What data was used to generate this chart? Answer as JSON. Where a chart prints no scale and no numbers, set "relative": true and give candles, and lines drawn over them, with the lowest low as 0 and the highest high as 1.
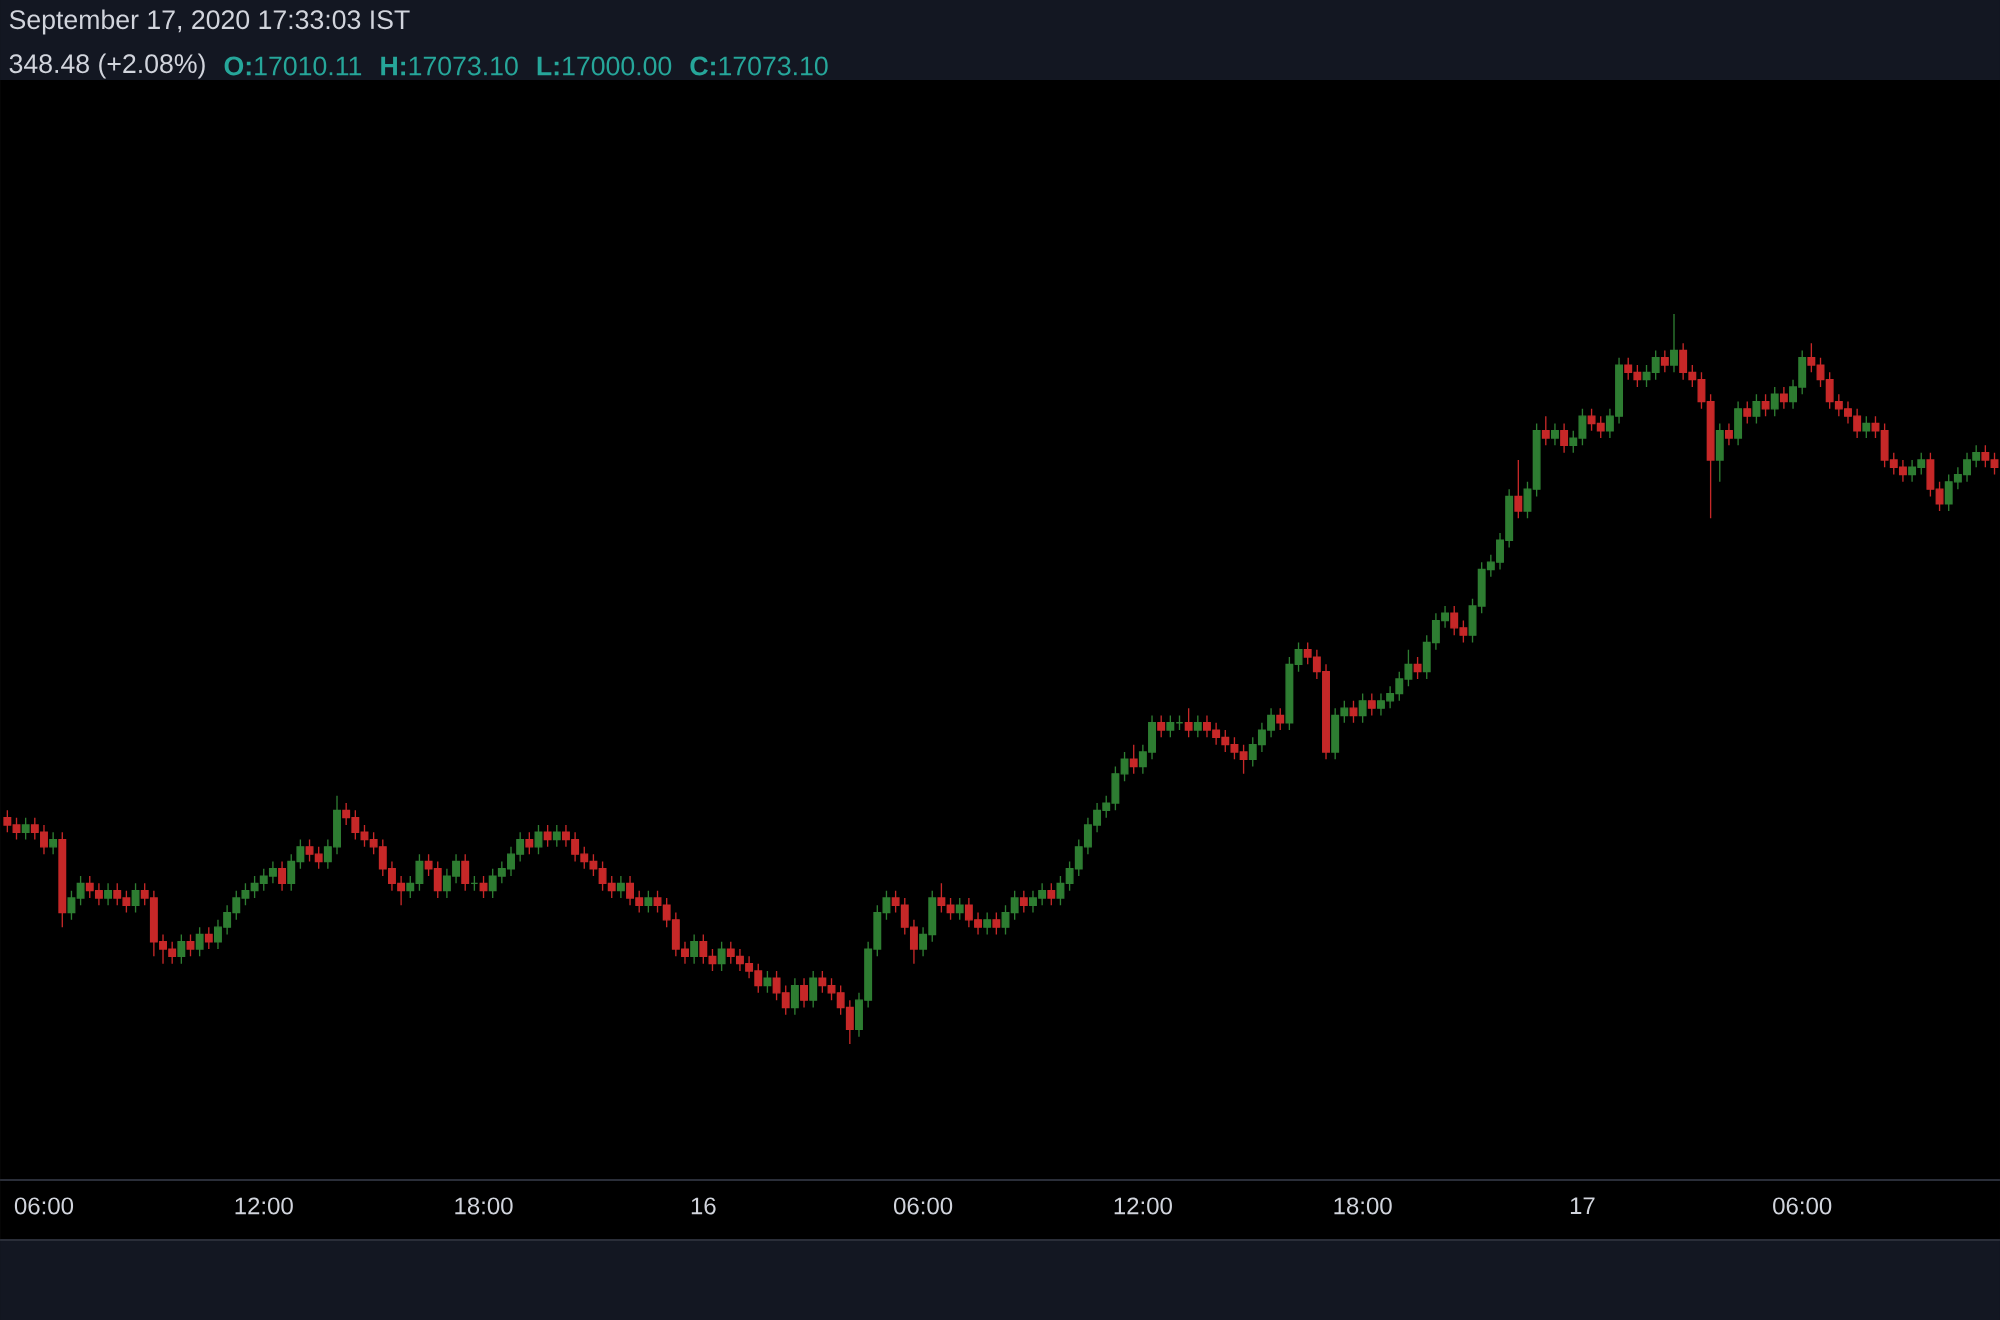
{
  "chart_data": {
    "type": "candlestick",
    "title": "September 17, 2020 17:33:03 IST",
    "annotations": [
      "348.48 (+2.08%)",
      "**O:**17010.11",
      "**H:**17073.10",
      "**L:**17000.00",
      "**C:**17073.10"
    ],
    "relative": true,
    "xlim": [
      "2020-09-15T04:48",
      "2020-09-17T11:24"
    ],
    "xticks": [
      {
        "value": "2020-09-15T06:00",
        "label": "06:00"
      },
      {
        "value": "2020-09-15T12:00",
        "label": "12:00"
      },
      {
        "value": "2020-09-15T18:00",
        "label": "18:00"
      },
      {
        "value": "2020-09-16",
        "label": "16"
      },
      {
        "value": "2020-09-16T06:00",
        "label": "06:00"
      },
      {
        "value": "2020-09-16T12:00",
        "label": "12:00"
      },
      {
        "value": "2020-09-16T18:00",
        "label": "18:00"
      },
      {
        "value": "2020-09-17",
        "label": "17"
      },
      {
        "value": "2020-09-17T06:00",
        "label": "06:00"
      }
    ],
    "x": [
      "2020-09-15T05:00",
      "2020-09-15T05:15",
      "2020-09-15T05:30",
      "2020-09-15T05:45",
      "2020-09-15T06:00",
      "2020-09-15T06:15",
      "2020-09-15T06:30",
      "2020-09-15T06:45",
      "2020-09-15T07:00",
      "2020-09-15T07:15",
      "2020-09-15T07:30",
      "2020-09-15T07:45",
      "2020-09-15T08:00",
      "2020-09-15T08:15",
      "2020-09-15T08:30",
      "2020-09-15T08:45",
      "2020-09-15T09:00",
      "2020-09-15T09:15",
      "2020-09-15T09:30",
      "2020-09-15T09:45",
      "2020-09-15T10:00",
      "2020-09-15T10:15",
      "2020-09-15T10:30",
      "2020-09-15T10:45",
      "2020-09-15T11:00",
      "2020-09-15T11:15",
      "2020-09-15T11:30",
      "2020-09-15T11:45",
      "2020-09-15T12:00",
      "2020-09-15T12:15",
      "2020-09-15T12:30",
      "2020-09-15T12:45",
      "2020-09-15T13:00",
      "2020-09-15T13:15",
      "2020-09-15T13:30",
      "2020-09-15T13:45",
      "2020-09-15T14:00",
      "2020-09-15T14:15",
      "2020-09-15T14:30",
      "2020-09-15T14:45",
      "2020-09-15T15:00",
      "2020-09-15T15:15",
      "2020-09-15T15:30",
      "2020-09-15T15:45",
      "2020-09-15T16:00",
      "2020-09-15T16:15",
      "2020-09-15T16:30",
      "2020-09-15T16:45",
      "2020-09-15T17:00",
      "2020-09-15T17:15",
      "2020-09-15T17:30",
      "2020-09-15T17:45",
      "2020-09-15T18:00",
      "2020-09-15T18:15",
      "2020-09-15T18:30",
      "2020-09-15T18:45",
      "2020-09-15T19:00",
      "2020-09-15T19:15",
      "2020-09-15T19:30",
      "2020-09-15T19:45",
      "2020-09-15T20:00",
      "2020-09-15T20:15",
      "2020-09-15T20:30",
      "2020-09-15T20:45",
      "2020-09-15T21:00",
      "2020-09-15T21:15",
      "2020-09-15T21:30",
      "2020-09-15T21:45",
      "2020-09-15T22:00",
      "2020-09-15T22:15",
      "2020-09-15T22:30",
      "2020-09-15T22:45",
      "2020-09-15T23:00",
      "2020-09-15T23:15",
      "2020-09-15T23:30",
      "2020-09-15T23:45",
      "2020-09-16T00:00",
      "2020-09-16T00:15",
      "2020-09-16T00:30",
      "2020-09-16T00:45",
      "2020-09-16T01:00",
      "2020-09-16T01:15",
      "2020-09-16T01:30",
      "2020-09-16T01:45",
      "2020-09-16T02:00",
      "2020-09-16T02:15",
      "2020-09-16T02:30",
      "2020-09-16T02:45",
      "2020-09-16T03:00",
      "2020-09-16T03:15",
      "2020-09-16T03:30",
      "2020-09-16T03:45",
      "2020-09-16T04:00",
      "2020-09-16T04:15",
      "2020-09-16T04:30",
      "2020-09-16T04:45",
      "2020-09-16T05:00",
      "2020-09-16T05:15",
      "2020-09-16T05:30",
      "2020-09-16T05:45",
      "2020-09-16T06:00",
      "2020-09-16T06:15",
      "2020-09-16T06:30",
      "2020-09-16T06:45",
      "2020-09-16T07:00",
      "2020-09-16T07:15",
      "2020-09-16T07:30",
      "2020-09-16T07:45",
      "2020-09-16T08:00",
      "2020-09-16T08:15",
      "2020-09-16T08:30",
      "2020-09-16T08:45",
      "2020-09-16T09:00",
      "2020-09-16T09:15",
      "2020-09-16T09:30",
      "2020-09-16T09:45",
      "2020-09-16T10:00",
      "2020-09-16T10:15",
      "2020-09-16T10:30",
      "2020-09-16T10:45",
      "2020-09-16T11:00",
      "2020-09-16T11:15",
      "2020-09-16T11:30",
      "2020-09-16T11:45",
      "2020-09-16T12:00",
      "2020-09-16T12:15",
      "2020-09-16T12:30",
      "2020-09-16T12:45",
      "2020-09-16T13:00",
      "2020-09-16T13:15",
      "2020-09-16T13:30",
      "2020-09-16T13:45",
      "2020-09-16T14:00",
      "2020-09-16T14:15",
      "2020-09-16T14:30",
      "2020-09-16T14:45",
      "2020-09-16T15:00",
      "2020-09-16T15:15",
      "2020-09-16T15:30",
      "2020-09-16T15:45",
      "2020-09-16T16:00",
      "2020-09-16T16:15",
      "2020-09-16T16:30",
      "2020-09-16T16:45",
      "2020-09-16T17:00",
      "2020-09-16T17:15",
      "2020-09-16T17:30",
      "2020-09-16T17:45",
      "2020-09-16T18:00",
      "2020-09-16T18:15",
      "2020-09-16T18:30",
      "2020-09-16T18:45",
      "2020-09-16T19:00",
      "2020-09-16T19:15",
      "2020-09-16T19:30",
      "2020-09-16T19:45",
      "2020-09-16T20:00",
      "2020-09-16T20:15",
      "2020-09-16T20:30",
      "2020-09-16T20:45",
      "2020-09-16T21:00",
      "2020-09-16T21:15",
      "2020-09-16T21:30",
      "2020-09-16T21:45",
      "2020-09-16T22:00",
      "2020-09-16T22:15",
      "2020-09-16T22:30",
      "2020-09-16T22:45",
      "2020-09-16T23:00",
      "2020-09-16T23:15",
      "2020-09-16T23:30",
      "2020-09-16T23:45",
      "2020-09-17T00:00",
      "2020-09-17T00:15",
      "2020-09-17T00:30",
      "2020-09-17T00:45",
      "2020-09-17T01:00",
      "2020-09-17T01:15",
      "2020-09-17T01:30",
      "2020-09-17T01:45",
      "2020-09-17T02:00",
      "2020-09-17T02:15",
      "2020-09-17T02:30",
      "2020-09-17T02:45",
      "2020-09-17T03:00",
      "2020-09-17T03:15",
      "2020-09-17T03:30",
      "2020-09-17T03:45",
      "2020-09-17T04:00",
      "2020-09-17T04:15",
      "2020-09-17T04:30",
      "2020-09-17T04:45",
      "2020-09-17T05:00",
      "2020-09-17T05:15",
      "2020-09-17T05:30",
      "2020-09-17T05:45",
      "2020-09-17T06:00",
      "2020-09-17T06:15",
      "2020-09-17T06:30",
      "2020-09-17T06:45",
      "2020-09-17T07:00",
      "2020-09-17T07:15",
      "2020-09-17T07:30",
      "2020-09-17T07:45",
      "2020-09-17T08:00",
      "2020-09-17T08:15",
      "2020-09-17T08:30",
      "2020-09-17T08:45",
      "2020-09-17T09:00",
      "2020-09-17T09:15",
      "2020-09-17T09:30",
      "2020-09-17T09:45",
      "2020-09-17T10:00",
      "2020-09-17T10:15",
      "2020-09-17T10:30",
      "2020-09-17T10:45",
      "2020-09-17T11:00",
      "2020-09-17T11:15"
    ],
    "ohlc": [
      [
        0.31,
        0.32,
        0.29,
        0.3
      ],
      [
        0.3,
        0.31,
        0.28,
        0.29
      ],
      [
        0.29,
        0.31,
        0.28,
        0.3
      ],
      [
        0.3,
        0.31,
        0.28,
        0.29
      ],
      [
        0.29,
        0.3,
        0.26,
        0.27
      ],
      [
        0.27,
        0.29,
        0.26,
        0.28
      ],
      [
        0.28,
        0.29,
        0.16,
        0.18
      ],
      [
        0.18,
        0.21,
        0.17,
        0.2
      ],
      [
        0.2,
        0.23,
        0.19,
        0.22
      ],
      [
        0.22,
        0.23,
        0.2,
        0.21
      ],
      [
        0.21,
        0.22,
        0.19,
        0.2
      ],
      [
        0.2,
        0.22,
        0.19,
        0.21
      ],
      [
        0.21,
        0.22,
        0.19,
        0.2
      ],
      [
        0.2,
        0.21,
        0.18,
        0.19
      ],
      [
        0.19,
        0.22,
        0.18,
        0.21
      ],
      [
        0.21,
        0.22,
        0.19,
        0.2
      ],
      [
        0.2,
        0.21,
        0.12,
        0.14
      ],
      [
        0.14,
        0.15,
        0.11,
        0.13
      ],
      [
        0.13,
        0.14,
        0.11,
        0.12
      ],
      [
        0.12,
        0.15,
        0.11,
        0.14
      ],
      [
        0.14,
        0.15,
        0.12,
        0.13
      ],
      [
        0.13,
        0.16,
        0.12,
        0.15
      ],
      [
        0.15,
        0.16,
        0.13,
        0.14
      ],
      [
        0.14,
        0.17,
        0.13,
        0.16
      ],
      [
        0.16,
        0.19,
        0.15,
        0.18
      ],
      [
        0.18,
        0.21,
        0.17,
        0.2
      ],
      [
        0.2,
        0.22,
        0.19,
        0.21
      ],
      [
        0.21,
        0.23,
        0.2,
        0.22
      ],
      [
        0.22,
        0.24,
        0.21,
        0.23
      ],
      [
        0.23,
        0.25,
        0.22,
        0.24
      ],
      [
        0.24,
        0.25,
        0.21,
        0.22
      ],
      [
        0.22,
        0.26,
        0.21,
        0.25
      ],
      [
        0.25,
        0.28,
        0.24,
        0.27
      ],
      [
        0.27,
        0.28,
        0.25,
        0.26
      ],
      [
        0.26,
        0.27,
        0.24,
        0.25
      ],
      [
        0.25,
        0.28,
        0.24,
        0.27
      ],
      [
        0.27,
        0.34,
        0.26,
        0.32
      ],
      [
        0.32,
        0.33,
        0.3,
        0.31
      ],
      [
        0.31,
        0.32,
        0.28,
        0.29
      ],
      [
        0.29,
        0.3,
        0.27,
        0.28
      ],
      [
        0.28,
        0.29,
        0.26,
        0.27
      ],
      [
        0.27,
        0.28,
        0.23,
        0.24
      ],
      [
        0.24,
        0.25,
        0.21,
        0.22
      ],
      [
        0.22,
        0.23,
        0.19,
        0.21
      ],
      [
        0.21,
        0.23,
        0.2,
        0.22
      ],
      [
        0.22,
        0.26,
        0.21,
        0.25
      ],
      [
        0.25,
        0.26,
        0.23,
        0.24
      ],
      [
        0.24,
        0.25,
        0.2,
        0.21
      ],
      [
        0.21,
        0.24,
        0.2,
        0.23
      ],
      [
        0.23,
        0.26,
        0.22,
        0.25
      ],
      [
        0.25,
        0.26,
        0.21,
        0.22
      ],
      [
        0.22,
        0.23,
        0.21,
        0.22
      ],
      [
        0.22,
        0.23,
        0.2,
        0.21
      ],
      [
        0.21,
        0.24,
        0.2,
        0.23
      ],
      [
        0.23,
        0.25,
        0.22,
        0.24
      ],
      [
        0.24,
        0.27,
        0.23,
        0.26
      ],
      [
        0.26,
        0.29,
        0.25,
        0.28
      ],
      [
        0.28,
        0.29,
        0.26,
        0.27
      ],
      [
        0.27,
        0.3,
        0.26,
        0.29
      ],
      [
        0.29,
        0.3,
        0.27,
        0.28
      ],
      [
        0.28,
        0.3,
        0.27,
        0.29
      ],
      [
        0.29,
        0.3,
        0.27,
        0.28
      ],
      [
        0.28,
        0.29,
        0.25,
        0.26
      ],
      [
        0.26,
        0.27,
        0.24,
        0.25
      ],
      [
        0.25,
        0.26,
        0.23,
        0.24
      ],
      [
        0.24,
        0.25,
        0.21,
        0.22
      ],
      [
        0.22,
        0.23,
        0.2,
        0.21
      ],
      [
        0.21,
        0.23,
        0.2,
        0.22
      ],
      [
        0.22,
        0.23,
        0.19,
        0.2
      ],
      [
        0.2,
        0.21,
        0.18,
        0.19
      ],
      [
        0.19,
        0.21,
        0.18,
        0.2
      ],
      [
        0.2,
        0.21,
        0.18,
        0.19
      ],
      [
        0.19,
        0.2,
        0.16,
        0.17
      ],
      [
        0.17,
        0.18,
        0.12,
        0.13
      ],
      [
        0.13,
        0.14,
        0.11,
        0.12
      ],
      [
        0.12,
        0.15,
        0.11,
        0.14
      ],
      [
        0.14,
        0.15,
        0.11,
        0.12
      ],
      [
        0.12,
        0.13,
        0.1,
        0.11
      ],
      [
        0.11,
        0.14,
        0.1,
        0.13
      ],
      [
        0.13,
        0.14,
        0.11,
        0.12
      ],
      [
        0.12,
        0.13,
        0.1,
        0.11
      ],
      [
        0.11,
        0.12,
        0.09,
        0.1
      ],
      [
        0.1,
        0.11,
        0.07,
        0.08
      ],
      [
        0.08,
        0.1,
        0.07,
        0.09
      ],
      [
        0.09,
        0.1,
        0.06,
        0.07
      ],
      [
        0.07,
        0.08,
        0.04,
        0.05
      ],
      [
        0.05,
        0.09,
        0.04,
        0.08
      ],
      [
        0.08,
        0.09,
        0.05,
        0.06
      ],
      [
        0.06,
        0.1,
        0.05,
        0.09
      ],
      [
        0.09,
        0.1,
        0.07,
        0.08
      ],
      [
        0.08,
        0.09,
        0.06,
        0.07
      ],
      [
        0.07,
        0.08,
        0.04,
        0.05
      ],
      [
        0.05,
        0.06,
        0.0,
        0.02
      ],
      [
        0.02,
        0.07,
        0.01,
        0.06
      ],
      [
        0.06,
        0.14,
        0.05,
        0.13
      ],
      [
        0.13,
        0.19,
        0.12,
        0.18
      ],
      [
        0.18,
        0.21,
        0.17,
        0.2
      ],
      [
        0.2,
        0.21,
        0.18,
        0.19
      ],
      [
        0.19,
        0.2,
        0.15,
        0.16
      ],
      [
        0.16,
        0.17,
        0.11,
        0.13
      ],
      [
        0.13,
        0.16,
        0.12,
        0.15
      ],
      [
        0.15,
        0.21,
        0.14,
        0.2
      ],
      [
        0.2,
        0.22,
        0.18,
        0.19
      ],
      [
        0.19,
        0.2,
        0.17,
        0.18
      ],
      [
        0.18,
        0.2,
        0.17,
        0.19
      ],
      [
        0.19,
        0.2,
        0.16,
        0.17
      ],
      [
        0.17,
        0.18,
        0.15,
        0.16
      ],
      [
        0.16,
        0.18,
        0.15,
        0.17
      ],
      [
        0.17,
        0.18,
        0.15,
        0.16
      ],
      [
        0.16,
        0.19,
        0.15,
        0.18
      ],
      [
        0.18,
        0.21,
        0.17,
        0.2
      ],
      [
        0.2,
        0.21,
        0.18,
        0.19
      ],
      [
        0.19,
        0.21,
        0.18,
        0.2
      ],
      [
        0.2,
        0.22,
        0.19,
        0.21
      ],
      [
        0.21,
        0.22,
        0.19,
        0.2
      ],
      [
        0.2,
        0.23,
        0.19,
        0.22
      ],
      [
        0.22,
        0.25,
        0.21,
        0.24
      ],
      [
        0.24,
        0.28,
        0.23,
        0.27
      ],
      [
        0.27,
        0.31,
        0.26,
        0.3
      ],
      [
        0.3,
        0.33,
        0.29,
        0.32
      ],
      [
        0.32,
        0.34,
        0.31,
        0.33
      ],
      [
        0.33,
        0.38,
        0.32,
        0.37
      ],
      [
        0.37,
        0.4,
        0.36,
        0.39
      ],
      [
        0.39,
        0.41,
        0.37,
        0.38
      ],
      [
        0.38,
        0.41,
        0.37,
        0.4
      ],
      [
        0.4,
        0.45,
        0.39,
        0.44
      ],
      [
        0.44,
        0.45,
        0.42,
        0.43
      ],
      [
        0.43,
        0.45,
        0.42,
        0.44
      ],
      [
        0.44,
        0.45,
        0.43,
        0.44
      ],
      [
        0.44,
        0.46,
        0.42,
        0.43
      ],
      [
        0.43,
        0.45,
        0.42,
        0.44
      ],
      [
        0.44,
        0.45,
        0.42,
        0.43
      ],
      [
        0.43,
        0.44,
        0.41,
        0.42
      ],
      [
        0.42,
        0.43,
        0.4,
        0.41
      ],
      [
        0.41,
        0.42,
        0.39,
        0.4
      ],
      [
        0.4,
        0.41,
        0.37,
        0.39
      ],
      [
        0.39,
        0.42,
        0.38,
        0.41
      ],
      [
        0.41,
        0.44,
        0.4,
        0.43
      ],
      [
        0.43,
        0.46,
        0.42,
        0.45
      ],
      [
        0.45,
        0.46,
        0.43,
        0.44
      ],
      [
        0.44,
        0.53,
        0.43,
        0.52
      ],
      [
        0.52,
        0.55,
        0.51,
        0.54
      ],
      [
        0.54,
        0.55,
        0.52,
        0.53
      ],
      [
        0.53,
        0.54,
        0.5,
        0.51
      ],
      [
        0.51,
        0.52,
        0.39,
        0.4
      ],
      [
        0.4,
        0.46,
        0.39,
        0.45
      ],
      [
        0.45,
        0.47,
        0.44,
        0.46
      ],
      [
        0.46,
        0.47,
        0.44,
        0.45
      ],
      [
        0.45,
        0.48,
        0.44,
        0.47
      ],
      [
        0.47,
        0.48,
        0.45,
        0.46
      ],
      [
        0.46,
        0.48,
        0.45,
        0.47
      ],
      [
        0.47,
        0.49,
        0.46,
        0.48
      ],
      [
        0.48,
        0.51,
        0.47,
        0.5
      ],
      [
        0.5,
        0.54,
        0.49,
        0.52
      ],
      [
        0.52,
        0.53,
        0.5,
        0.51
      ],
      [
        0.51,
        0.56,
        0.5,
        0.55
      ],
      [
        0.55,
        0.59,
        0.54,
        0.58
      ],
      [
        0.58,
        0.6,
        0.57,
        0.59
      ],
      [
        0.59,
        0.6,
        0.56,
        0.57
      ],
      [
        0.57,
        0.58,
        0.55,
        0.56
      ],
      [
        0.56,
        0.61,
        0.55,
        0.6
      ],
      [
        0.6,
        0.66,
        0.59,
        0.65
      ],
      [
        0.65,
        0.67,
        0.64,
        0.66
      ],
      [
        0.66,
        0.7,
        0.65,
        0.69
      ],
      [
        0.69,
        0.76,
        0.68,
        0.75
      ],
      [
        0.75,
        0.8,
        0.72,
        0.73
      ],
      [
        0.73,
        0.77,
        0.72,
        0.76
      ],
      [
        0.76,
        0.85,
        0.75,
        0.84
      ],
      [
        0.84,
        0.86,
        0.82,
        0.83
      ],
      [
        0.83,
        0.85,
        0.82,
        0.84
      ],
      [
        0.84,
        0.85,
        0.81,
        0.82
      ],
      [
        0.82,
        0.84,
        0.81,
        0.83
      ],
      [
        0.83,
        0.87,
        0.82,
        0.86
      ],
      [
        0.86,
        0.87,
        0.84,
        0.85
      ],
      [
        0.85,
        0.86,
        0.83,
        0.84
      ],
      [
        0.84,
        0.87,
        0.83,
        0.86
      ],
      [
        0.86,
        0.94,
        0.85,
        0.93
      ],
      [
        0.93,
        0.94,
        0.91,
        0.92
      ],
      [
        0.92,
        0.93,
        0.9,
        0.91
      ],
      [
        0.91,
        0.93,
        0.9,
        0.92
      ],
      [
        0.92,
        0.95,
        0.91,
        0.94
      ],
      [
        0.94,
        0.95,
        0.92,
        0.93
      ],
      [
        0.93,
        1.0,
        0.92,
        0.95
      ],
      [
        0.95,
        0.96,
        0.91,
        0.92
      ],
      [
        0.92,
        0.93,
        0.9,
        0.91
      ],
      [
        0.91,
        0.92,
        0.87,
        0.88
      ],
      [
        0.88,
        0.89,
        0.72,
        0.8
      ],
      [
        0.8,
        0.85,
        0.77,
        0.84
      ],
      [
        0.84,
        0.85,
        0.82,
        0.83
      ],
      [
        0.83,
        0.88,
        0.82,
        0.87
      ],
      [
        0.87,
        0.88,
        0.85,
        0.86
      ],
      [
        0.86,
        0.89,
        0.85,
        0.88
      ],
      [
        0.88,
        0.89,
        0.86,
        0.87
      ],
      [
        0.87,
        0.9,
        0.86,
        0.89
      ],
      [
        0.89,
        0.9,
        0.87,
        0.88
      ],
      [
        0.88,
        0.91,
        0.87,
        0.9
      ],
      [
        0.9,
        0.95,
        0.89,
        0.94
      ],
      [
        0.94,
        0.96,
        0.92,
        0.93
      ],
      [
        0.93,
        0.94,
        0.9,
        0.91
      ],
      [
        0.91,
        0.92,
        0.87,
        0.88
      ],
      [
        0.88,
        0.89,
        0.86,
        0.87
      ],
      [
        0.87,
        0.88,
        0.85,
        0.86
      ],
      [
        0.86,
        0.87,
        0.83,
        0.84
      ],
      [
        0.84,
        0.86,
        0.83,
        0.85
      ],
      [
        0.85,
        0.86,
        0.83,
        0.84
      ],
      [
        0.84,
        0.85,
        0.79,
        0.8
      ],
      [
        0.8,
        0.81,
        0.78,
        0.79
      ],
      [
        0.79,
        0.8,
        0.77,
        0.78
      ],
      [
        0.78,
        0.8,
        0.77,
        0.79
      ],
      [
        0.79,
        0.81,
        0.78,
        0.8
      ],
      [
        0.8,
        0.81,
        0.75,
        0.76
      ],
      [
        0.76,
        0.77,
        0.73,
        0.74
      ],
      [
        0.74,
        0.78,
        0.73,
        0.77
      ],
      [
        0.77,
        0.79,
        0.76,
        0.78
      ],
      [
        0.78,
        0.81,
        0.77,
        0.8
      ],
      [
        0.8,
        0.82,
        0.79,
        0.81
      ],
      [
        0.81,
        0.82,
        0.79,
        0.8
      ],
      [
        0.8,
        0.81,
        0.78,
        0.79
      ]
    ]
  }
}
